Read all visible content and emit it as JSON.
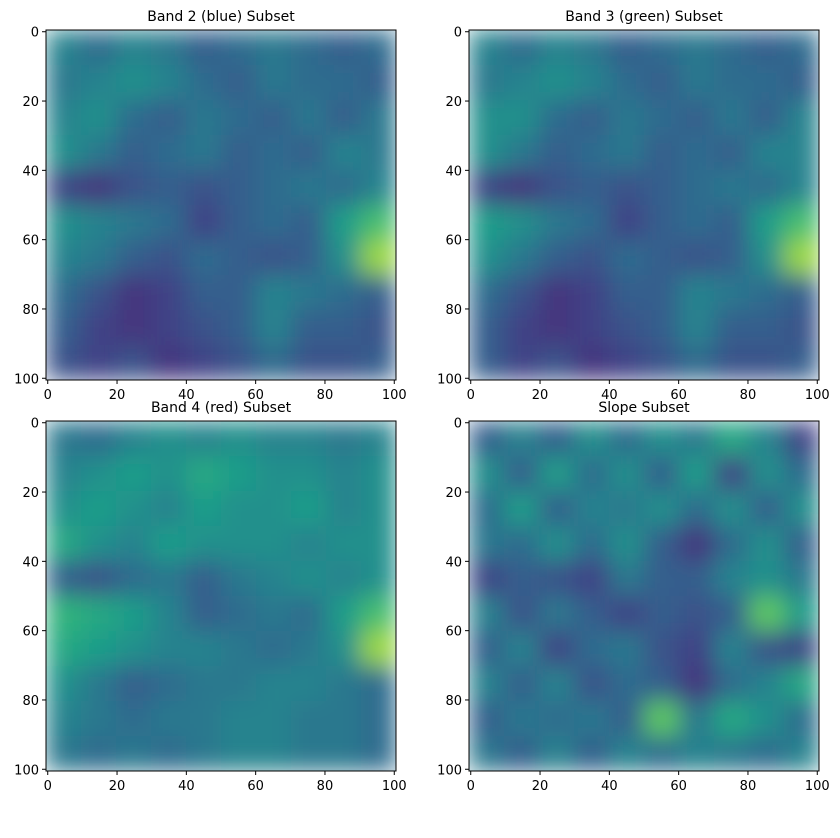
{
  "chart_data": [
    {
      "type": "heatmap",
      "title": "Band 2 (blue) Subset",
      "colormap": "viridis",
      "xlim": [
        -0.5,
        100.5
      ],
      "ylim": [
        100.5,
        -0.5
      ],
      "xticks": [
        0,
        20,
        40,
        60,
        80,
        100
      ],
      "yticks": [
        0,
        20,
        40,
        60,
        80,
        100
      ],
      "values": [
        [
          0.45,
          0.35,
          0.45,
          0.4,
          0.3,
          0.35,
          0.4,
          0.35,
          0.3,
          0.35
        ],
        [
          0.4,
          0.45,
          0.5,
          0.45,
          0.35,
          0.3,
          0.4,
          0.35,
          0.35,
          0.3
        ],
        [
          0.45,
          0.5,
          0.35,
          0.3,
          0.4,
          0.35,
          0.3,
          0.4,
          0.3,
          0.4
        ],
        [
          0.5,
          0.4,
          0.3,
          0.35,
          0.4,
          0.3,
          0.35,
          0.3,
          0.45,
          0.4
        ],
        [
          0.2,
          0.15,
          0.25,
          0.3,
          0.25,
          0.3,
          0.35,
          0.4,
          0.35,
          0.45
        ],
        [
          0.5,
          0.45,
          0.4,
          0.35,
          0.2,
          0.3,
          0.35,
          0.3,
          0.55,
          0.7
        ],
        [
          0.45,
          0.4,
          0.3,
          0.25,
          0.35,
          0.3,
          0.25,
          0.3,
          0.5,
          0.85
        ],
        [
          0.35,
          0.25,
          0.15,
          0.2,
          0.3,
          0.3,
          0.45,
          0.4,
          0.35,
          0.3
        ],
        [
          0.3,
          0.2,
          0.15,
          0.2,
          0.25,
          0.3,
          0.45,
          0.3,
          0.3,
          0.25
        ],
        [
          0.25,
          0.2,
          0.25,
          0.15,
          0.2,
          0.25,
          0.35,
          0.25,
          0.25,
          0.3
        ]
      ]
    },
    {
      "type": "heatmap",
      "title": "Band 3 (green) Subset",
      "colormap": "viridis",
      "xlim": [
        -0.5,
        100.5
      ],
      "ylim": [
        100.5,
        -0.5
      ],
      "xticks": [
        0,
        20,
        40,
        60,
        80,
        100
      ],
      "yticks": [
        0,
        20,
        40,
        60,
        80,
        100
      ],
      "values": [
        [
          0.45,
          0.35,
          0.45,
          0.4,
          0.3,
          0.35,
          0.4,
          0.35,
          0.3,
          0.35
        ],
        [
          0.4,
          0.45,
          0.5,
          0.45,
          0.35,
          0.3,
          0.4,
          0.35,
          0.35,
          0.3
        ],
        [
          0.5,
          0.5,
          0.35,
          0.3,
          0.4,
          0.35,
          0.3,
          0.4,
          0.3,
          0.45
        ],
        [
          0.5,
          0.4,
          0.3,
          0.35,
          0.4,
          0.3,
          0.35,
          0.3,
          0.45,
          0.45
        ],
        [
          0.2,
          0.15,
          0.25,
          0.3,
          0.25,
          0.3,
          0.35,
          0.4,
          0.35,
          0.45
        ],
        [
          0.55,
          0.5,
          0.4,
          0.35,
          0.2,
          0.3,
          0.35,
          0.3,
          0.55,
          0.7
        ],
        [
          0.5,
          0.4,
          0.3,
          0.25,
          0.35,
          0.3,
          0.25,
          0.3,
          0.5,
          0.85
        ],
        [
          0.35,
          0.25,
          0.15,
          0.2,
          0.3,
          0.3,
          0.45,
          0.4,
          0.35,
          0.3
        ],
        [
          0.3,
          0.2,
          0.15,
          0.2,
          0.25,
          0.3,
          0.45,
          0.3,
          0.3,
          0.25
        ],
        [
          0.3,
          0.2,
          0.25,
          0.15,
          0.2,
          0.25,
          0.35,
          0.25,
          0.25,
          0.3
        ]
      ]
    },
    {
      "type": "heatmap",
      "title": "Band 4 (red) Subset",
      "colormap": "viridis",
      "xlim": [
        -0.5,
        100.5
      ],
      "ylim": [
        100.5,
        -0.5
      ],
      "xticks": [
        0,
        20,
        40,
        60,
        80,
        100
      ],
      "yticks": [
        0,
        20,
        40,
        60,
        80,
        100
      ],
      "values": [
        [
          0.4,
          0.35,
          0.45,
          0.5,
          0.45,
          0.5,
          0.45,
          0.45,
          0.4,
          0.45
        ],
        [
          0.45,
          0.5,
          0.55,
          0.5,
          0.6,
          0.55,
          0.5,
          0.5,
          0.45,
          0.5
        ],
        [
          0.5,
          0.55,
          0.5,
          0.45,
          0.55,
          0.5,
          0.5,
          0.55,
          0.45,
          0.5
        ],
        [
          0.6,
          0.5,
          0.45,
          0.55,
          0.5,
          0.5,
          0.5,
          0.45,
          0.5,
          0.5
        ],
        [
          0.3,
          0.25,
          0.35,
          0.4,
          0.3,
          0.4,
          0.45,
          0.5,
          0.45,
          0.5
        ],
        [
          0.65,
          0.6,
          0.55,
          0.45,
          0.3,
          0.35,
          0.4,
          0.35,
          0.55,
          0.7
        ],
        [
          0.6,
          0.55,
          0.5,
          0.45,
          0.45,
          0.4,
          0.35,
          0.4,
          0.5,
          0.85
        ],
        [
          0.5,
          0.4,
          0.3,
          0.35,
          0.4,
          0.4,
          0.45,
          0.45,
          0.4,
          0.35
        ],
        [
          0.45,
          0.4,
          0.35,
          0.4,
          0.4,
          0.45,
          0.45,
          0.4,
          0.4,
          0.35
        ],
        [
          0.4,
          0.35,
          0.4,
          0.35,
          0.4,
          0.45,
          0.45,
          0.4,
          0.4,
          0.35
        ]
      ]
    },
    {
      "type": "heatmap",
      "title": "Slope Subset",
      "colormap": "viridis",
      "xlim": [
        -0.5,
        100.5
      ],
      "ylim": [
        100.5,
        -0.5
      ],
      "xticks": [
        0,
        20,
        40,
        60,
        80,
        100
      ],
      "yticks": [
        0,
        20,
        40,
        60,
        80,
        100
      ],
      "values": [
        [
          0.3,
          0.45,
          0.3,
          0.5,
          0.35,
          0.5,
          0.4,
          0.6,
          0.45,
          0.2
        ],
        [
          0.5,
          0.3,
          0.55,
          0.35,
          0.5,
          0.3,
          0.55,
          0.2,
          0.5,
          0.35
        ],
        [
          0.35,
          0.55,
          0.3,
          0.45,
          0.4,
          0.5,
          0.35,
          0.5,
          0.3,
          0.5
        ],
        [
          0.4,
          0.35,
          0.5,
          0.35,
          0.5,
          0.3,
          0.15,
          0.35,
          0.5,
          0.3
        ],
        [
          0.2,
          0.3,
          0.25,
          0.2,
          0.4,
          0.3,
          0.3,
          0.45,
          0.5,
          0.4
        ],
        [
          0.45,
          0.25,
          0.4,
          0.3,
          0.2,
          0.3,
          0.25,
          0.3,
          0.75,
          0.55
        ],
        [
          0.3,
          0.45,
          0.2,
          0.35,
          0.4,
          0.25,
          0.2,
          0.45,
          0.25,
          0.2
        ],
        [
          0.45,
          0.3,
          0.45,
          0.25,
          0.35,
          0.3,
          0.15,
          0.35,
          0.45,
          0.6
        ],
        [
          0.3,
          0.4,
          0.35,
          0.4,
          0.3,
          0.75,
          0.4,
          0.6,
          0.5,
          0.35
        ],
        [
          0.4,
          0.3,
          0.45,
          0.3,
          0.45,
          0.35,
          0.45,
          0.4,
          0.35,
          0.45
        ]
      ]
    }
  ]
}
